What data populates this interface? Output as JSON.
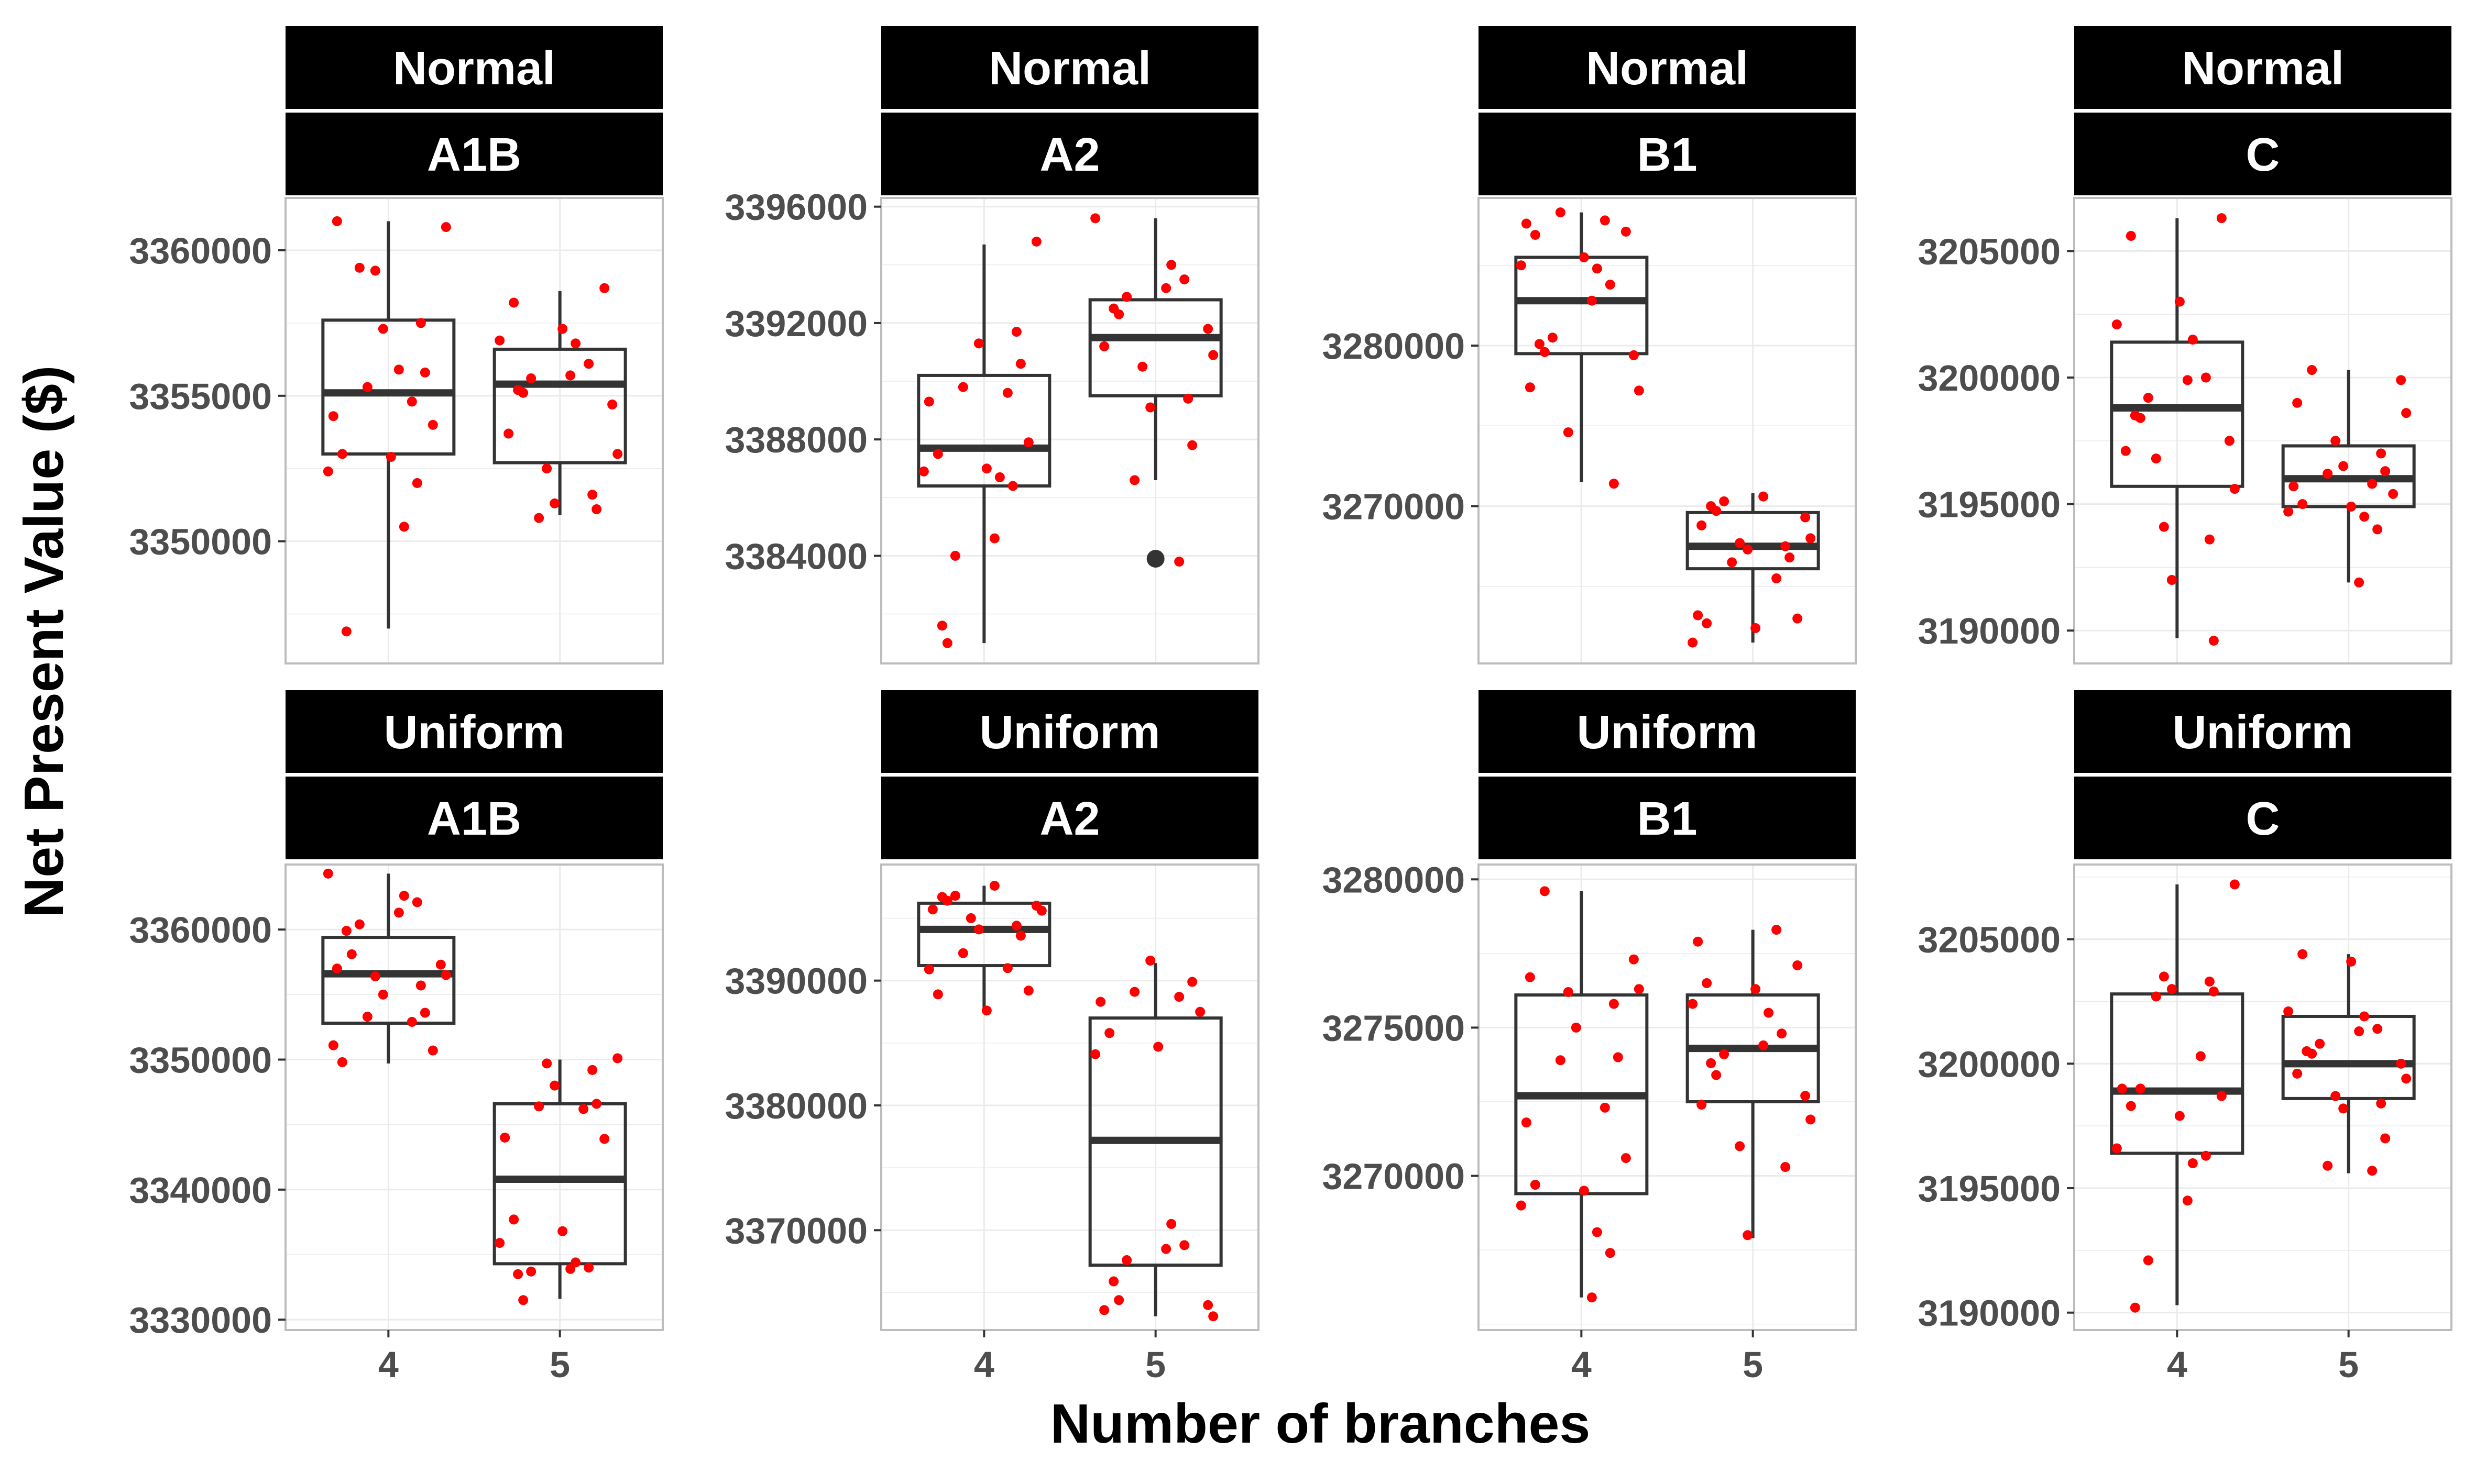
{
  "chart_data": {
    "type": "boxplot",
    "xlabel": "Number of branches",
    "ylabel": "Net Present Value ($)",
    "categories": [
      "4",
      "5"
    ],
    "grid": true,
    "colors": {
      "points": "#ff0000",
      "box": "#333333",
      "strip": "#000000",
      "strip_text": "#ffffff"
    },
    "panels": [
      {
        "strip_top": "Normal",
        "strip_bottom": "A1B",
        "ylim": [
          3345800,
          3361800
        ],
        "yticks": [
          3350000,
          3355000,
          3360000
        ],
        "boxes": [
          {
            "x": "4",
            "whisker_low": 3347000,
            "q1": 3353000,
            "median": 3355100,
            "q3": 3357600,
            "whisker_high": 3361000,
            "outliers": []
          },
          {
            "x": "5",
            "whisker_low": 3350900,
            "q1": 3352700,
            "median": 3355400,
            "q3": 3356600,
            "whisker_high": 3358600,
            "outliers": []
          }
        ],
        "points": [
          {
            "x": "4",
            "values": [
              3361000,
              3360800,
              3359300,
              3357500,
              3357300,
              3355800,
              3355300,
              3354800,
              3354300,
              3354000,
              3353000,
              3352900,
              3352400,
              3350500,
              3352000,
              3355900,
              3359400,
              3346900
            ]
          },
          {
            "x": "5",
            "values": [
              3358700,
              3358200,
              3357300,
              3356900,
              3356800,
              3356100,
              3355700,
              3355600,
              3355200,
              3355100,
              3354700,
              3353700,
              3353000,
              3352500,
              3351600,
              3351300,
              3351100,
              3350800
            ]
          }
        ]
      },
      {
        "strip_top": "Normal",
        "strip_bottom": "A2",
        "ylim": [
          3380300,
          3396300
        ],
        "yticks": [
          3384000,
          3388000,
          3392000,
          3396000
        ],
        "boxes": [
          {
            "x": "4",
            "whisker_low": 3381000,
            "q1": 3386400,
            "median": 3387700,
            "q3": 3390200,
            "whisker_high": 3394700,
            "outliers": []
          },
          {
            "x": "5",
            "whisker_low": 3386600,
            "q1": 3389500,
            "median": 3391500,
            "q3": 3392800,
            "whisker_high": 3395600,
            "outliers": [
              3383900
            ]
          }
        ],
        "points": [
          {
            "x": "4",
            "values": [
              3391700,
              3391300,
              3390600,
              3389800,
              3389600,
              3389300,
              3387900,
              3387500,
              3387000,
              3386900,
              3386700,
              3386400,
              3384600,
              3384000,
              3381600,
              3381000,
              3394800
            ]
          },
          {
            "x": "5",
            "values": [
              3395600,
              3394000,
              3393500,
              3393200,
              3392900,
              3392500,
              3392300,
              3391800,
              3391200,
              3390900,
              3390500,
              3389400,
              3389100,
              3387800,
              3386600,
              3383800
            ]
          }
        ]
      },
      {
        "strip_top": "Normal",
        "strip_bottom": "B1",
        "ylim": [
          3260200,
          3289200
        ],
        "yticks": [
          3270000,
          3280000
        ],
        "boxes": [
          {
            "x": "4",
            "whisker_low": 3271500,
            "q1": 3279500,
            "median": 3282800,
            "q3": 3285500,
            "whisker_high": 3288300,
            "outliers": []
          },
          {
            "x": "5",
            "whisker_low": 3261500,
            "q1": 3266100,
            "median": 3267500,
            "q3": 3269600,
            "whisker_high": 3270800,
            "outliers": []
          }
        ],
        "points": [
          {
            "x": "4",
            "values": [
              3288300,
              3287800,
              3287600,
              3287100,
              3286900,
              3285500,
              3285000,
              3284800,
              3283800,
              3282800,
              3280500,
              3280100,
              3279600,
              3279400,
              3277400,
              3277200,
              3274600,
              3271400
            ]
          },
          {
            "x": "5",
            "values": [
              3270600,
              3270300,
              3270000,
              3269700,
              3269300,
              3268800,
              3268000,
              3267700,
              3267500,
              3267300,
              3266800,
              3266500,
              3265500,
              3263200,
              3263000,
              3262700,
              3262400,
              3261500
            ]
          }
        ]
      },
      {
        "strip_top": "Normal",
        "strip_bottom": "C",
        "ylim": [
          3188700,
          3207100
        ],
        "yticks": [
          3190000,
          3195000,
          3200000,
          3205000
        ],
        "boxes": [
          {
            "x": "4",
            "whisker_low": 3189700,
            "q1": 3195700,
            "median": 3198800,
            "q3": 3201400,
            "whisker_high": 3206300,
            "outliers": []
          },
          {
            "x": "5",
            "whisker_low": 3191900,
            "q1": 3194900,
            "median": 3196000,
            "q3": 3197300,
            "whisker_high": 3200300,
            "outliers": []
          }
        ],
        "points": [
          {
            "x": "4",
            "values": [
              3206300,
              3205600,
              3203000,
              3202100,
              3201500,
              3200000,
              3199900,
              3199200,
              3198500,
              3198400,
              3197500,
              3197100,
              3195600,
              3194100,
              3193600,
              3192000,
              3189600,
              3196800
            ]
          },
          {
            "x": "5",
            "values": [
              3200300,
              3199900,
              3199000,
              3198600,
              3197500,
              3197000,
              3196500,
              3196300,
              3196200,
              3195800,
              3195700,
              3195400,
              3195000,
              3194900,
              3194700,
              3194500,
              3194000,
              3191900
            ]
          }
        ]
      },
      {
        "strip_top": "Uniform",
        "strip_bottom": "A1B",
        "ylim": [
          3329200,
          3365000
        ],
        "yticks": [
          3330000,
          3340000,
          3350000,
          3360000
        ],
        "boxes": [
          {
            "x": "4",
            "whisker_low": 3349700,
            "q1": 3352800,
            "median": 3356600,
            "q3": 3359400,
            "whisker_high": 3364300,
            "outliers": []
          },
          {
            "x": "5",
            "whisker_low": 3331600,
            "q1": 3334300,
            "median": 3340800,
            "q3": 3346600,
            "whisker_high": 3350000,
            "outliers": []
          }
        ],
        "points": [
          {
            "x": "4",
            "values": [
              3364300,
              3362600,
              3362100,
              3361300,
              3360400,
              3359900,
              3358100,
              3357300,
              3357000,
              3356500,
              3356400,
              3355700,
              3355000,
              3353600,
              3353300,
              3352900,
              3351100,
              3350700,
              3349800
            ]
          },
          {
            "x": "5",
            "values": [
              3350100,
              3349700,
              3349200,
              3348000,
              3346600,
              3346400,
              3346200,
              3344000,
              3343900,
              3337700,
              3336800,
              3335900,
              3334400,
              3334000,
              3333900,
              3333700,
              3333500,
              3331500
            ]
          }
        ]
      },
      {
        "strip_top": "Uniform",
        "strip_bottom": "A2",
        "ylim": [
          3362000,
          3399300
        ],
        "yticks": [
          3370000,
          3380000,
          3390000
        ],
        "boxes": [
          {
            "x": "4",
            "whisker_low": 3387600,
            "q1": 3391200,
            "median": 3394100,
            "q3": 3396200,
            "whisker_high": 3397600,
            "outliers": []
          },
          {
            "x": "5",
            "whisker_low": 3363100,
            "q1": 3367200,
            "median": 3377200,
            "q3": 3387000,
            "whisker_high": 3391400,
            "outliers": []
          }
        ],
        "points": [
          {
            "x": "4",
            "values": [
              3397600,
              3396800,
              3396700,
              3396400,
              3396000,
              3395700,
              3395600,
              3395000,
              3394400,
              3394100,
              3393600,
              3392200,
              3391000,
              3390900,
              3389200,
              3388900,
              3387600
            ]
          },
          {
            "x": "5",
            "values": [
              3391600,
              3389900,
              3389100,
              3388700,
              3388300,
              3387500,
              3385800,
              3384700,
              3384100,
              3370500,
              3368800,
              3368500,
              3367600,
              3365900,
              3364400,
              3364000,
              3363600,
              3363100
            ]
          }
        ]
      },
      {
        "strip_top": "Uniform",
        "strip_bottom": "B1",
        "ylim": [
          3264800,
          3280500
        ],
        "yticks": [
          3270000,
          3275000,
          3280000
        ],
        "boxes": [
          {
            "x": "4",
            "whisker_low": 3265900,
            "q1": 3269400,
            "median": 3272700,
            "q3": 3276100,
            "whisker_high": 3279600,
            "outliers": []
          },
          {
            "x": "5",
            "whisker_low": 3267900,
            "q1": 3272500,
            "median": 3274300,
            "q3": 3276100,
            "whisker_high": 3278300,
            "outliers": []
          }
        ],
        "points": [
          {
            "x": "4",
            "values": [
              3279600,
              3277300,
              3276700,
              3276300,
              3276200,
              3275800,
              3275000,
              3274000,
              3273900,
              3272300,
              3271800,
              3270600,
              3269700,
              3269500,
              3269000,
              3268100,
              3267400,
              3265900
            ]
          },
          {
            "x": "5",
            "values": [
              3278300,
              3277900,
              3277100,
              3276500,
              3276300,
              3275800,
              3275500,
              3274800,
              3274400,
              3274100,
              3273800,
              3273400,
              3272700,
              3272400,
              3271900,
              3271000,
              3270300,
              3268000
            ]
          }
        ]
      },
      {
        "strip_top": "Uniform",
        "strip_bottom": "C",
        "ylim": [
          3189300,
          3208000
        ],
        "yticks": [
          3190000,
          3195000,
          3200000,
          3205000
        ],
        "boxes": [
          {
            "x": "4",
            "whisker_low": 3190300,
            "q1": 3196400,
            "median": 3198900,
            "q3": 3202800,
            "whisker_high": 3207200,
            "outliers": []
          },
          {
            "x": "5",
            "whisker_low": 3195600,
            "q1": 3198600,
            "median": 3200000,
            "q3": 3201900,
            "whisker_high": 3204400,
            "outliers": []
          }
        ],
        "points": [
          {
            "x": "4",
            "values": [
              3207200,
              3203500,
              3203300,
              3203000,
              3202900,
              3202700,
              3200300,
              3199000,
              3198700,
              3198300,
              3197900,
              3196600,
              3196000,
              3196300,
              3194500,
              3192100,
              3190200,
              3199000
            ]
          },
          {
            "x": "5",
            "values": [
              3204400,
              3204100,
              3202100,
              3201900,
              3201400,
              3201300,
              3200800,
              3200500,
              3200400,
              3200000,
              3199600,
              3199400,
              3198700,
              3198400,
              3198200,
              3197000,
              3195900,
              3195700
            ]
          }
        ]
      }
    ]
  }
}
